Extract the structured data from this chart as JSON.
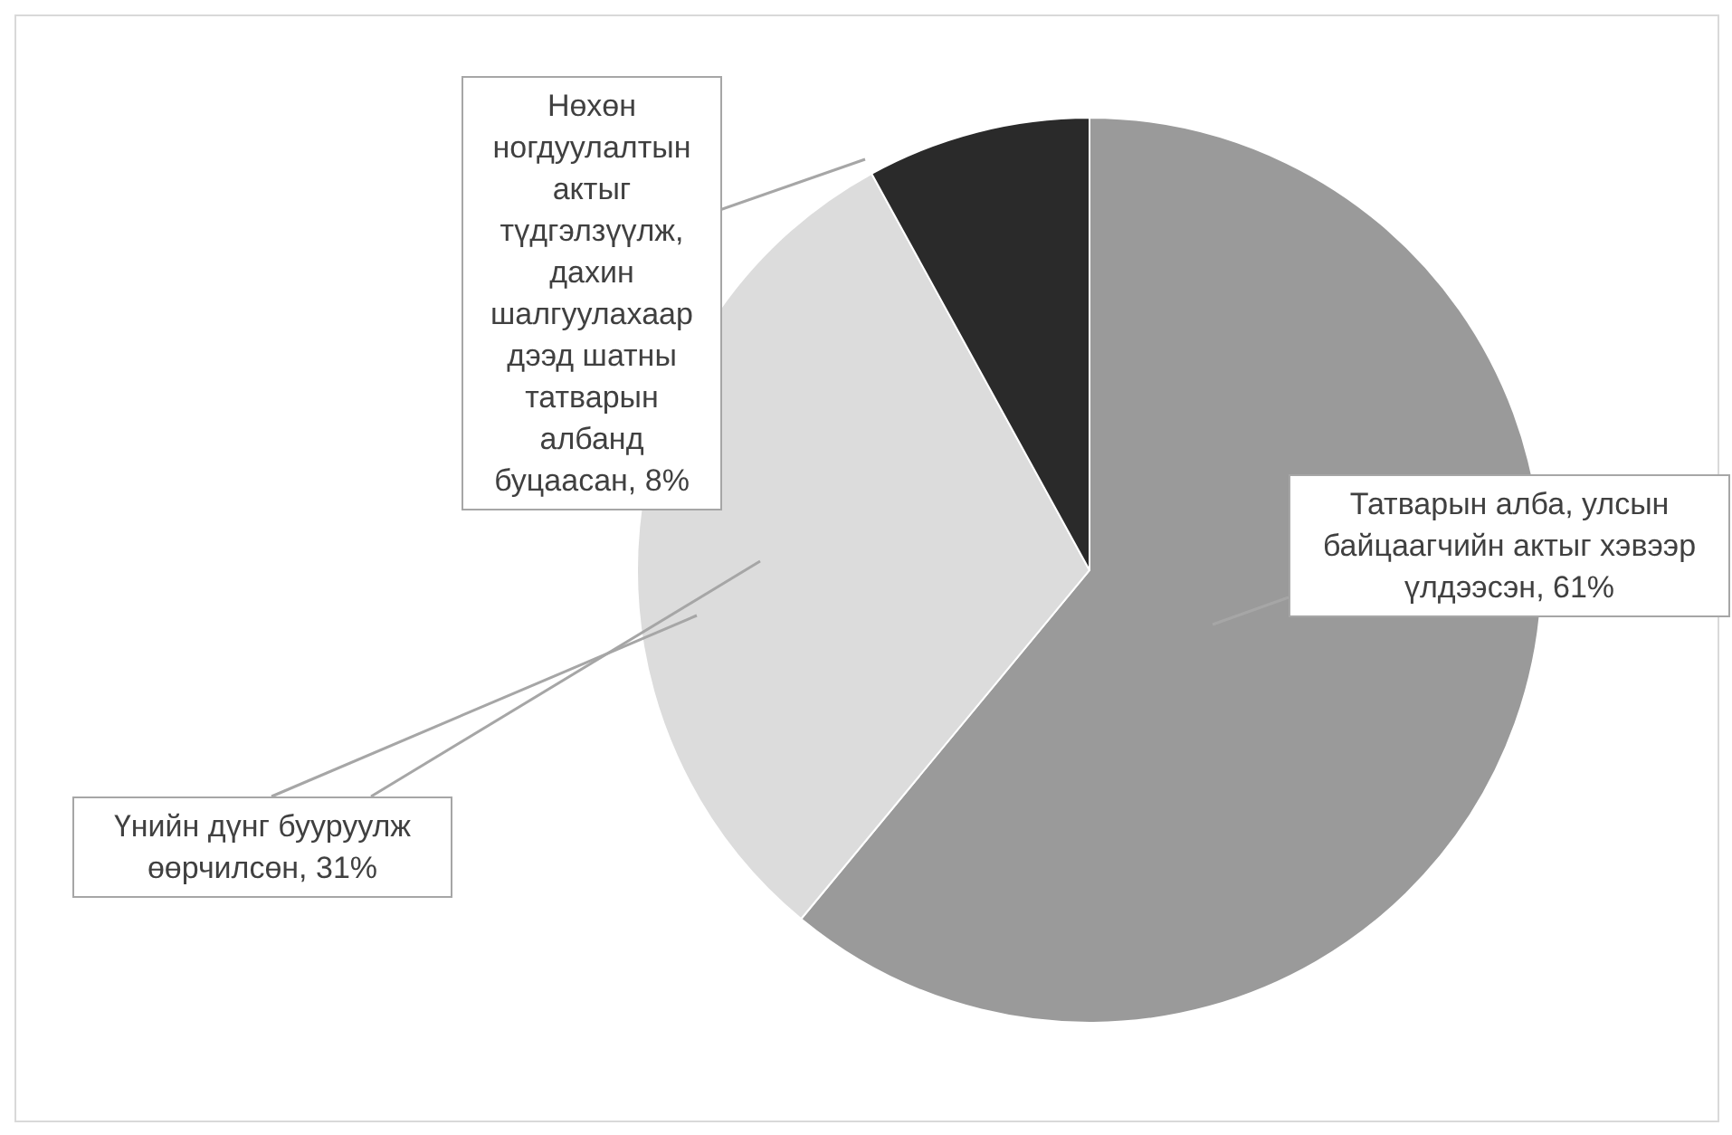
{
  "chart_data": {
    "type": "pie",
    "categories": [
      "Татварын алба, улсын байцаагчийн актыг хэвээр үлдээсэн, 61%",
      "Үнийн дүнг бууруулж өөрчилсөн, 31%",
      "Нөхөн ногдуулалтын актыг түдгэлзүүлж, дахин шалгуулахаар дээд шатны татварын албанд буцаасан, 8%"
    ],
    "values": [
      61,
      31,
      8
    ],
    "colors": [
      "#9a9a9a",
      "#dcdcdc",
      "#2a2a2a"
    ]
  }
}
